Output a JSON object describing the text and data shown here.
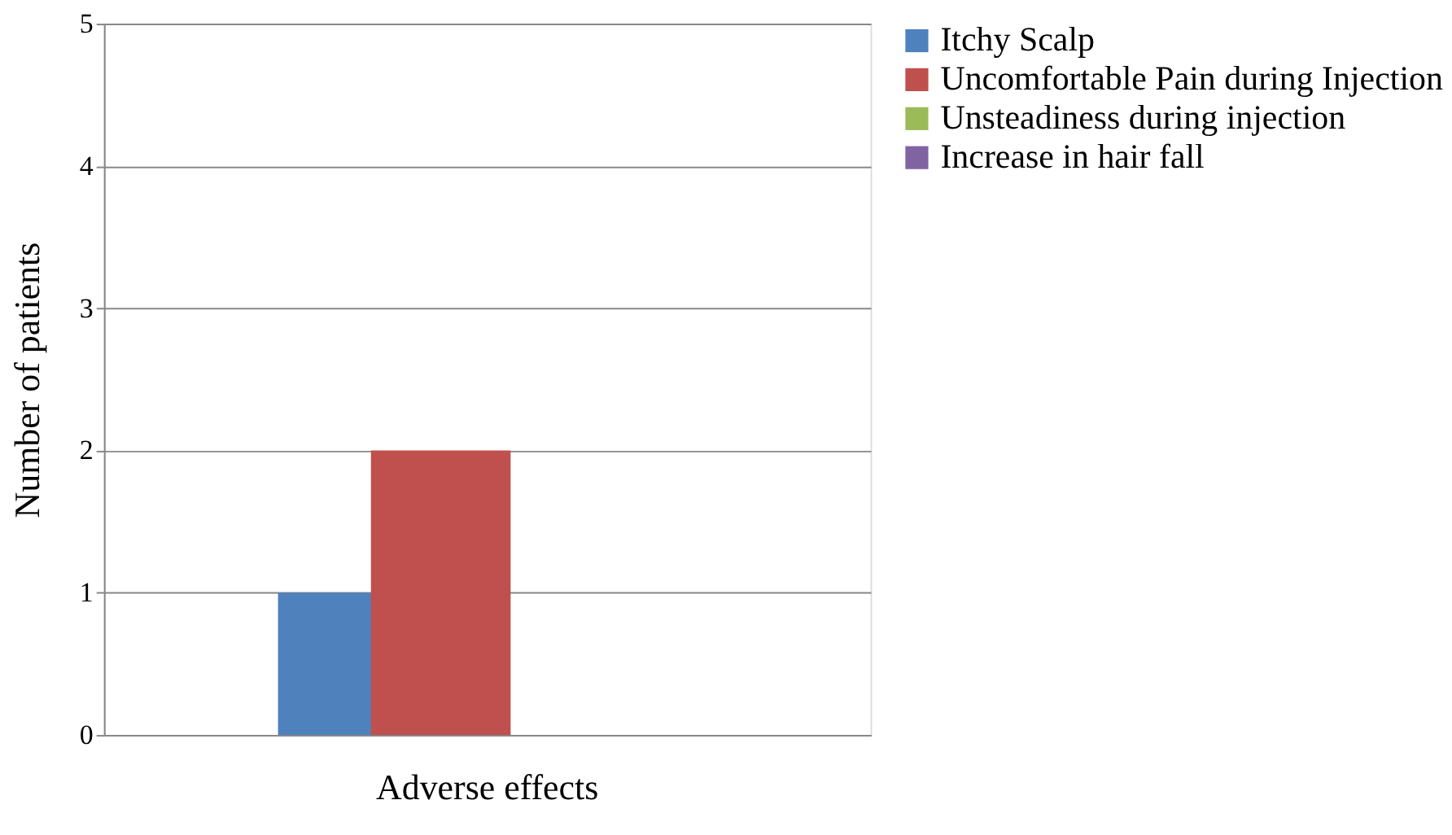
{
  "chart_data": {
    "type": "bar",
    "ylabel": "Number of patients",
    "categories": [
      "Adverse effects"
    ],
    "series": [
      {
        "name": "Itchy Scalp",
        "color": "#4f81bd",
        "values": [
          1
        ]
      },
      {
        "name": "Uncomfortable Pain during Injection",
        "color": "#c0504d",
        "values": [
          2
        ]
      },
      {
        "name": "Unsteadiness during injection",
        "color": "#9bbb59",
        "values": [
          0
        ]
      },
      {
        "name": "Increase in hair fall",
        "color": "#8064a2",
        "values": [
          0
        ]
      }
    ],
    "ylim": [
      0,
      5
    ],
    "yticks": [
      0,
      1,
      2,
      3,
      4,
      5
    ],
    "grid": "y",
    "legend": "right"
  }
}
